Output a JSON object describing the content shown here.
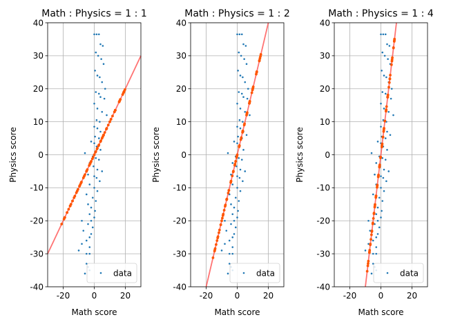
{
  "colors": {
    "points": "#1f77b4",
    "projection": "#ff5500",
    "line": "#ff4444",
    "grid": "#b0b0b0"
  },
  "chart_data": [
    {
      "type": "scatter",
      "title": "Math : Physics = 1 : 1",
      "xlabel": "Math score",
      "ylabel": "Physics score",
      "xlim": [
        -30,
        30
      ],
      "ylim": [
        -40,
        40
      ],
      "xticks": [
        -20,
        0,
        20
      ],
      "yticks": [
        -40,
        -30,
        -20,
        -10,
        0,
        10,
        20,
        30,
        40
      ],
      "grid": true,
      "legend": {
        "label": "data",
        "location": "lower-right"
      },
      "projection_line": {
        "slope": 1,
        "intercept": 0
      },
      "series": [
        {
          "name": "data",
          "x": [
            0,
            1.5,
            3,
            4,
            5.5,
            1,
            2.5,
            4.5,
            6,
            0.5,
            2,
            3.5,
            5,
            7,
            1,
            3,
            4,
            6.5,
            0,
            2,
            5,
            8,
            1.5,
            3.5,
            0,
            2,
            4,
            6,
            0.5,
            3,
            -2,
            0,
            1.5,
            4,
            -6,
            -1,
            1,
            3,
            -3,
            -0.5,
            2,
            5,
            -4,
            0,
            1.5,
            3.5,
            -3,
            0,
            2,
            -5,
            -1,
            1,
            -4,
            -2,
            0.5,
            -3,
            0,
            -8,
            -2,
            -4,
            -1,
            -7,
            -2,
            -3,
            -5,
            -8,
            -3,
            -10,
            -5,
            -3,
            -5,
            -4,
            -3,
            -6
          ],
          "y": [
            36.5,
            36.5,
            36.5,
            33.5,
            33,
            31,
            30,
            29,
            27.5,
            25.5,
            24,
            23.5,
            22,
            20,
            19,
            18.5,
            17.5,
            17,
            15.5,
            14,
            13,
            12,
            10.5,
            10,
            8.5,
            8,
            7,
            6,
            5.5,
            5,
            4,
            3.5,
            2.5,
            1.5,
            0.5,
            -0.5,
            -1,
            -1.5,
            -2.5,
            -3.5,
            -4.5,
            -5,
            -6,
            -6.5,
            -7,
            -8,
            -9,
            -10,
            -11,
            -12,
            -13,
            -14,
            -15,
            -16,
            -17,
            -18,
            -19,
            -20,
            -20,
            -21,
            -22,
            -23,
            -24,
            -25,
            -26,
            -27,
            -28,
            -29,
            -30,
            -30,
            -33,
            -34,
            -35,
            -36
          ]
        }
      ]
    },
    {
      "type": "scatter",
      "title": "Math : Physics = 1 : 2",
      "xlabel": "Math score",
      "ylabel": "Physics score",
      "xlim": [
        -30,
        30
      ],
      "ylim": [
        -40,
        40
      ],
      "xticks": [
        -20,
        0,
        20
      ],
      "yticks": [
        -40,
        -30,
        -20,
        -10,
        0,
        10,
        20,
        30,
        40
      ],
      "grid": true,
      "legend": {
        "label": "data",
        "location": "lower-right"
      },
      "projection_line": {
        "slope": 2,
        "intercept": 0
      },
      "series": [
        {
          "name": "data",
          "x": [
            0,
            1.5,
            3,
            4,
            5.5,
            1,
            2.5,
            4.5,
            6,
            0.5,
            2,
            3.5,
            5,
            7,
            1,
            3,
            4,
            6.5,
            0,
            2,
            5,
            8,
            1.5,
            3.5,
            0,
            2,
            4,
            6,
            0.5,
            3,
            -2,
            0,
            1.5,
            4,
            -6,
            -1,
            1,
            3,
            -3,
            -0.5,
            2,
            5,
            -4,
            0,
            1.5,
            3.5,
            -3,
            0,
            2,
            -5,
            -1,
            1,
            -4,
            -2,
            0.5,
            -3,
            0,
            -8,
            -2,
            -4,
            -1,
            -7,
            -2,
            -3,
            -5,
            -8,
            -3,
            -10,
            -5,
            -3,
            -5,
            -4,
            -3,
            -6
          ],
          "y": [
            36.5,
            36.5,
            36.5,
            33.5,
            33,
            31,
            30,
            29,
            27.5,
            25.5,
            24,
            23.5,
            22,
            20,
            19,
            18.5,
            17.5,
            17,
            15.5,
            14,
            13,
            12,
            10.5,
            10,
            8.5,
            8,
            7,
            6,
            5.5,
            5,
            4,
            3.5,
            2.5,
            1.5,
            0.5,
            -0.5,
            -1,
            -1.5,
            -2.5,
            -3.5,
            -4.5,
            -5,
            -6,
            -6.5,
            -7,
            -8,
            -9,
            -10,
            -11,
            -12,
            -13,
            -14,
            -15,
            -16,
            -17,
            -18,
            -19,
            -20,
            -20,
            -21,
            -22,
            -23,
            -24,
            -25,
            -26,
            -27,
            -28,
            -29,
            -30,
            -30,
            -33,
            -34,
            -35,
            -36
          ]
        }
      ]
    },
    {
      "type": "scatter",
      "title": "Math : Physics = 1 : 4",
      "xlabel": "Math score",
      "ylabel": "Physics score",
      "xlim": [
        -30,
        30
      ],
      "ylim": [
        -40,
        40
      ],
      "xticks": [
        -20,
        0,
        20
      ],
      "yticks": [
        -40,
        -30,
        -20,
        -10,
        0,
        10,
        20,
        30,
        40
      ],
      "grid": true,
      "legend": {
        "label": "data",
        "location": "lower-right"
      },
      "projection_line": {
        "slope": 4,
        "intercept": 0
      },
      "series": [
        {
          "name": "data",
          "x": [
            0,
            1.5,
            3,
            4,
            5.5,
            1,
            2.5,
            4.5,
            6,
            0.5,
            2,
            3.5,
            5,
            7,
            1,
            3,
            4,
            6.5,
            0,
            2,
            5,
            8,
            1.5,
            3.5,
            0,
            2,
            4,
            6,
            0.5,
            3,
            -2,
            0,
            1.5,
            4,
            -6,
            -1,
            1,
            3,
            -3,
            -0.5,
            2,
            5,
            -4,
            0,
            1.5,
            3.5,
            -3,
            0,
            2,
            -5,
            -1,
            1,
            -4,
            -2,
            0.5,
            -3,
            0,
            -8,
            -2,
            -4,
            -1,
            -7,
            -2,
            -3,
            -5,
            -8,
            -3,
            -10,
            -5,
            -3,
            -5,
            -4,
            -3,
            -6
          ],
          "y": [
            36.5,
            36.5,
            36.5,
            33.5,
            33,
            31,
            30,
            29,
            27.5,
            25.5,
            24,
            23.5,
            22,
            20,
            19,
            18.5,
            17.5,
            17,
            15.5,
            14,
            13,
            12,
            10.5,
            10,
            8.5,
            8,
            7,
            6,
            5.5,
            5,
            4,
            3.5,
            2.5,
            1.5,
            0.5,
            -0.5,
            -1,
            -1.5,
            -2.5,
            -3.5,
            -4.5,
            -5,
            -6,
            -6.5,
            -7,
            -8,
            -9,
            -10,
            -11,
            -12,
            -13,
            -14,
            -15,
            -16,
            -17,
            -18,
            -19,
            -20,
            -20,
            -21,
            -22,
            -23,
            -24,
            -25,
            -26,
            -27,
            -28,
            -29,
            -30,
            -30,
            -33,
            -34,
            -35,
            -36
          ]
        }
      ]
    }
  ]
}
